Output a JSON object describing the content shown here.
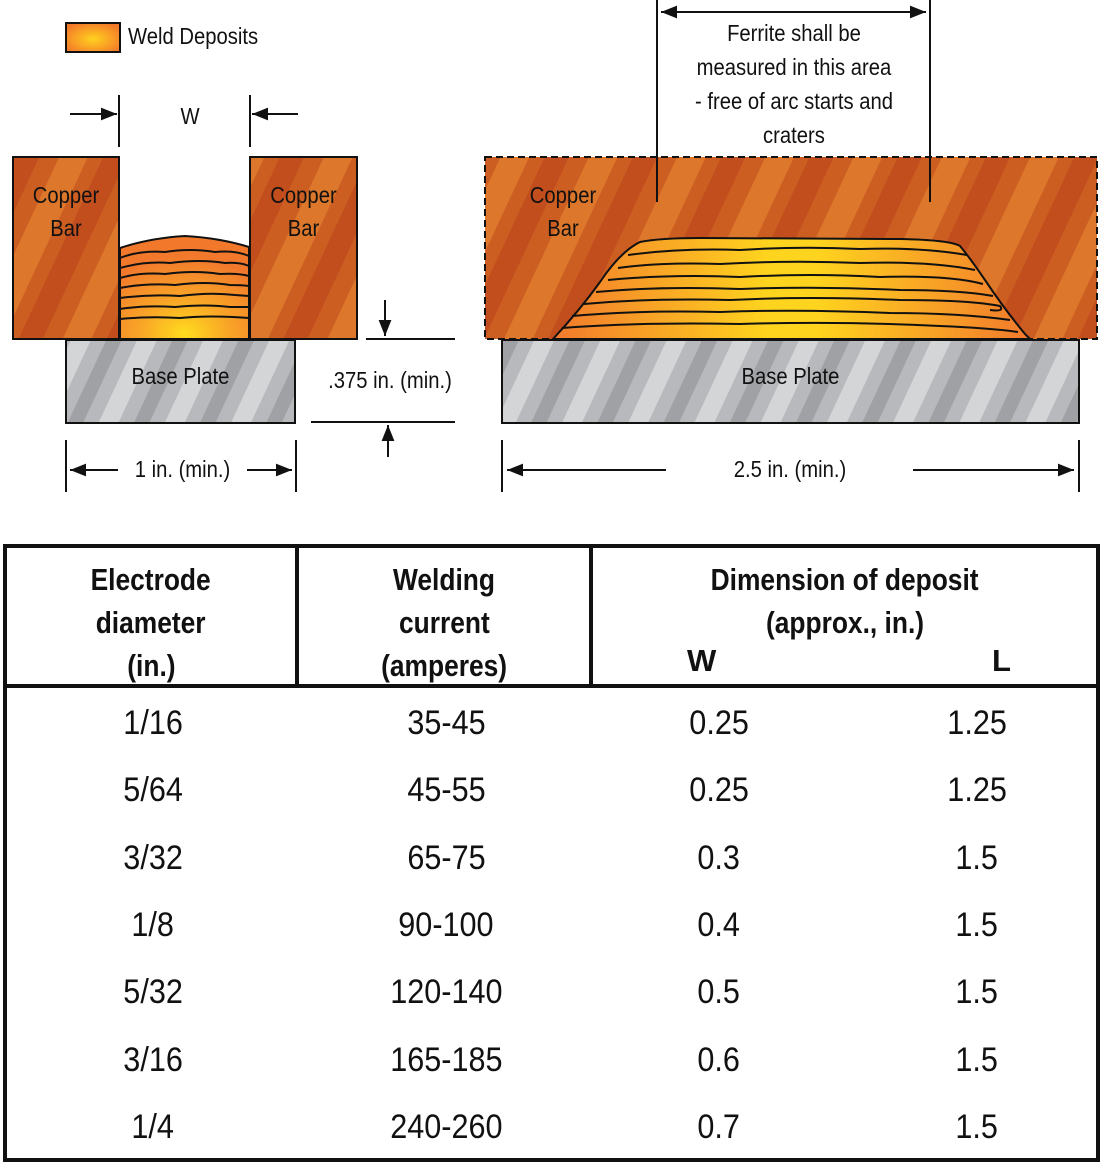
{
  "legend": {
    "label": "Weld Deposits",
    "swatch_colors": [
      "#f47a2a",
      "#ffd21e"
    ]
  },
  "colors": {
    "copper_dark": "#c24e1e",
    "copper_light": "#e0782b",
    "weld_outer": "#f47a2a",
    "weld_center": "#ffd21e",
    "plate_dark": "#9c9ea1",
    "plate_light": "#d2d3d5",
    "outline": "#111111"
  },
  "left_diagram": {
    "dimension_w": "W",
    "copper_bar_left": [
      "Copper",
      "Bar"
    ],
    "copper_bar_right": [
      "Copper",
      "Bar"
    ],
    "base_plate": "Base Plate",
    "thickness_label": ".375 in. (min.)",
    "width_label": "1 in. (min.)"
  },
  "right_diagram": {
    "ferrite_note": [
      "Ferrite shall be",
      "measured in this area",
      "- free of arc starts and",
      "craters"
    ],
    "copper_bar": [
      "Copper",
      "Bar"
    ],
    "base_plate": "Base Plate",
    "length_label": "2.5 in. (min.)"
  },
  "table": {
    "headers": {
      "col1": [
        "Electrode",
        "diameter",
        "(in.)"
      ],
      "col2": [
        "Welding",
        "current",
        "(amperes)"
      ],
      "col3": [
        "Dimension of deposit",
        "(approx., in.)"
      ],
      "sub_w": "W",
      "sub_l": "L"
    },
    "rows": [
      {
        "diameter": "1/16",
        "current": "35-45",
        "w": "0.25",
        "l": "1.25"
      },
      {
        "diameter": "5/64",
        "current": "45-55",
        "w": "0.25",
        "l": "1.25"
      },
      {
        "diameter": "3/32",
        "current": "65-75",
        "w": "0.3",
        "l": "1.5"
      },
      {
        "diameter": "1/8",
        "current": "90-100",
        "w": "0.4",
        "l": "1.5"
      },
      {
        "diameter": "5/32",
        "current": "120-140",
        "w": "0.5",
        "l": "1.5"
      },
      {
        "diameter": "3/16",
        "current": "165-185",
        "w": "0.6",
        "l": "1.5"
      },
      {
        "diameter": "1/4",
        "current": "240-260",
        "w": "0.7",
        "l": "1.5"
      }
    ]
  }
}
